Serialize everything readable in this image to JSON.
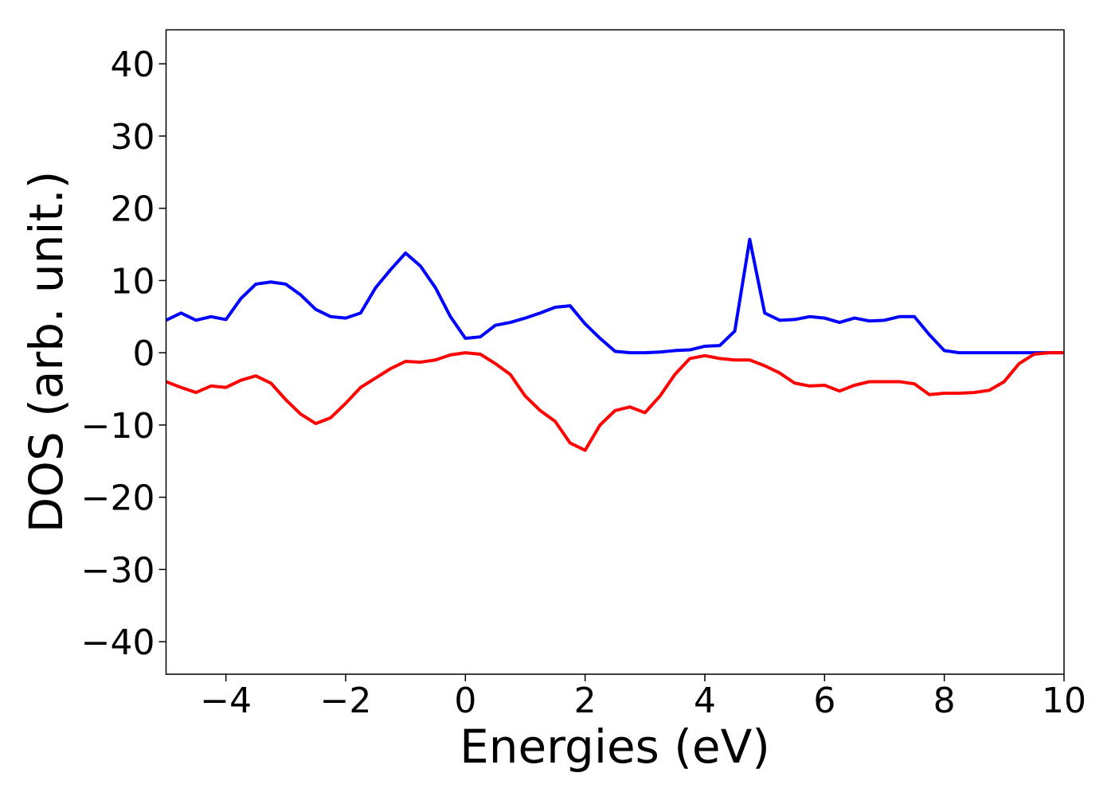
{
  "chart_data": {
    "type": "line",
    "xlabel": "Energies (eV)",
    "ylabel": "DOS (arb. unit.)",
    "x": [
      -5,
      -4.75,
      -4.5,
      -4.25,
      -4,
      -3.75,
      -3.5,
      -3.25,
      -3,
      -2.75,
      -2.5,
      -2.25,
      -2,
      -1.75,
      -1.5,
      -1.25,
      -1,
      -0.75,
      -0.5,
      -0.25,
      0,
      0.25,
      0.5,
      0.75,
      1,
      1.25,
      1.5,
      1.75,
      2,
      2.25,
      2.5,
      2.75,
      3,
      3.25,
      3.5,
      3.75,
      4,
      4.25,
      4.5,
      4.75,
      5,
      5.25,
      5.5,
      5.75,
      6,
      6.25,
      6.5,
      6.75,
      7,
      7.25,
      7.5,
      7.75,
      8,
      8.25,
      8.5,
      8.75,
      9,
      9.25,
      9.5,
      9.75,
      10
    ],
    "series": [
      {
        "color": "#0000ff",
        "values": [
          4.5,
          5.5,
          4.5,
          5.0,
          4.6,
          7.5,
          9.5,
          9.8,
          9.5,
          8,
          6,
          5,
          4.8,
          5.5,
          9,
          11.5,
          13.8,
          12,
          9,
          5,
          2,
          2.2,
          3.8,
          4.2,
          4.8,
          5.5,
          6.3,
          6.5,
          4,
          2,
          0.2,
          0,
          0,
          0.1,
          0.3,
          0.4,
          0.9,
          1,
          3,
          15.7,
          5.5,
          4.5,
          4.6,
          5,
          4.8,
          4.2,
          4.8,
          4.4,
          4.5,
          5,
          5,
          2.5,
          0.3,
          0,
          0,
          0,
          0,
          0,
          0,
          0,
          0
        ]
      },
      {
        "color": "#ff0000",
        "values": [
          -4,
          -4.8,
          -5.5,
          -4.6,
          -4.8,
          -3.8,
          -3.2,
          -4.2,
          -6.5,
          -8.5,
          -9.8,
          -9,
          -7,
          -4.8,
          -3.5,
          -2.2,
          -1.2,
          -1.3,
          -1,
          -0.3,
          0,
          -0.2,
          -1.5,
          -3,
          -6,
          -8,
          -9.5,
          -12.5,
          -13.5,
          -10,
          -8,
          -7.5,
          -8.3,
          -6,
          -3,
          -0.8,
          -0.4,
          -0.8,
          -1,
          -1,
          -1.8,
          -2.8,
          -4.2,
          -4.6,
          -4.5,
          -5.3,
          -4.5,
          -4,
          -4,
          -4,
          -4.3,
          -5.8,
          -5.6,
          -5.6,
          -5.5,
          -5.2,
          -4,
          -1.5,
          -0.2,
          0,
          0
        ]
      }
    ],
    "xlim": [
      -5,
      10
    ],
    "xticks": [
      {
        "value": -4,
        "label": "−4"
      },
      {
        "value": -2,
        "label": "−2"
      },
      0,
      2,
      4,
      6,
      8,
      10
    ],
    "ylim": [
      -44.5,
      44.7
    ],
    "yticks": [
      {
        "value": -40,
        "label": "−40"
      },
      {
        "value": -30,
        "label": "−30"
      },
      {
        "value": -20,
        "label": "−20"
      },
      {
        "value": -10,
        "label": "−10"
      },
      0,
      10,
      20,
      30,
      40
    ],
    "grid": false
  }
}
